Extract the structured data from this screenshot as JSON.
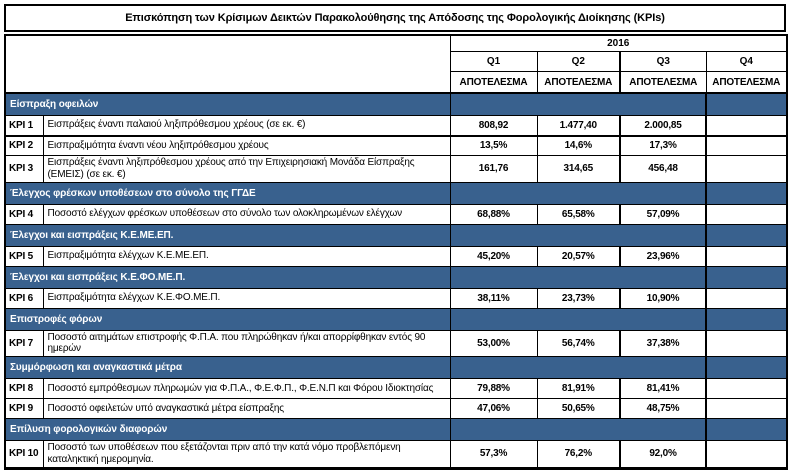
{
  "title": "Επισκόπηση των Κρίσιμων Δεικτών Παρακολούθησης της Απόδοσης της Φορολογικής Διοίκησης (KPIs)",
  "year": "2016",
  "quarters": {
    "q1": "Q1",
    "q2": "Q2",
    "q3": "Q3",
    "q4": "Q4"
  },
  "result_label": "ΑΠΟΤΕΛΕΣΜΑ",
  "colors": {
    "section_header_bg": "#39618e",
    "section_header_text": "#ffffff",
    "border": "#000000",
    "background": "#ffffff"
  },
  "sections": [
    {
      "title": "Είσπραξη οφειλών",
      "rows": [
        {
          "id": "KPI 1",
          "desc": "Εισπράξεις έναντι παλαιού ληξιπρόθεσμου χρέους (σε εκ. €)",
          "values": [
            "808,92",
            "1.477,40",
            "2.000,85",
            ""
          ]
        },
        {
          "id": "KPI 2",
          "desc": "Εισπραξιμότητα έναντι νέου ληξιπρόθεσμου χρέους",
          "values": [
            "13,5%",
            "14,6%",
            "17,3%",
            ""
          ]
        },
        {
          "id": "KPI 3",
          "desc": "Εισπράξεις έναντι ληξιπρόθεσμου χρέους από την Επιχειρησιακή Μονάδα Είσπραξης (ΕΜΕΙΣ) (σε εκ. €)",
          "values": [
            "161,76",
            "314,65",
            "456,48",
            ""
          ]
        }
      ]
    },
    {
      "title": "Έλεγχος φρέσκων υποθέσεων στο σύνολο της ΓΓΔΕ",
      "rows": [
        {
          "id": "KPI 4",
          "desc": "Ποσοστό ελέγχων φρέσκων υποθέσεων στο σύνολο των ολοκληρωμένων ελέγχων",
          "values": [
            "68,88%",
            "65,58%",
            "57,09%",
            ""
          ]
        }
      ]
    },
    {
      "title": "Έλεγχοι και εισπράξεις Κ.Ε.ΜΕ.ΕΠ.",
      "rows": [
        {
          "id": "KPI 5",
          "desc": "Εισπραξιμότητα ελέγχων Κ.Ε.ΜΕ.ΕΠ.",
          "values": [
            "45,20%",
            "20,57%",
            "23,96%",
            ""
          ]
        }
      ]
    },
    {
      "title": "Έλεγχοι και εισπράξεις Κ.Ε.ΦΟ.ΜΕ.Π.",
      "rows": [
        {
          "id": "KPI 6",
          "desc": "Εισπραξιμότητα ελέγχων Κ.Ε.ΦΟ.ΜΕ.Π.",
          "values": [
            "38,11%",
            "23,73%",
            "10,90%",
            ""
          ]
        }
      ]
    },
    {
      "title": "Επιστροφές φόρων",
      "rows": [
        {
          "id": "KPI 7",
          "desc": "Ποσοστό αιτημάτων επιστροφής Φ.Π.Α. που πληρώθηκαν ή/και απορρίφθηκαν εντός 90 ημερών",
          "values": [
            "53,00%",
            "56,74%",
            "37,38%",
            ""
          ]
        }
      ]
    },
    {
      "title": "Συμμόρφωση και αναγκαστικά μέτρα",
      "rows": [
        {
          "id": "KPI 8",
          "desc": "Ποσοστό εμπρόθεσμων πληρωμών για Φ.Π.Α., Φ.Ε.Φ.Π., Φ.Ε.Ν.Π και Φόρου Ιδιοκτησίας",
          "values": [
            "79,88%",
            "81,91%",
            "81,41%",
            ""
          ]
        },
        {
          "id": "KPI 9",
          "desc": "Ποσοστό οφειλετών υπό αναγκαστικά μέτρα είσπραξης",
          "values": [
            "47,06%",
            "50,65%",
            "48,75%",
            ""
          ]
        }
      ]
    },
    {
      "title": "Επίλυση φορολογικών διαφορών",
      "rows": [
        {
          "id": "KPI 10",
          "desc": "Ποσοστό των υποθέσεων που εξετάζονται πριν από την κατά νόμο προβλεπόμενη καταληκτική ημερομηνία.",
          "values": [
            "57,3%",
            "76,2%",
            "92,0%",
            ""
          ]
        }
      ]
    }
  ]
}
